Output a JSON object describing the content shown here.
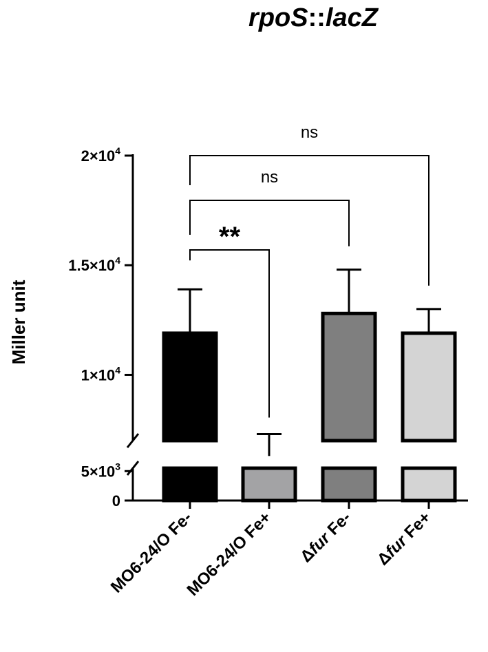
{
  "chart_data": {
    "type": "bar",
    "title": "rpoS::lacZ",
    "ylabel": "Miller unit",
    "xlabel": "",
    "ylim": [
      0,
      20000
    ],
    "axis_break": [
      5500,
      7000
    ],
    "yticks": [
      {
        "value": 0,
        "label": "0"
      },
      {
        "value": 5000,
        "label": "5×10",
        "exp": "3"
      },
      {
        "value": 10000,
        "label": "1×10",
        "exp": "4"
      },
      {
        "value": 15000,
        "label": "1.5×10",
        "exp": "4"
      },
      {
        "value": 20000,
        "label": "2×10",
        "exp": "4"
      }
    ],
    "categories": [
      {
        "prefix": "MO6-24/O",
        "italic": "",
        "suffix": " Fe-"
      },
      {
        "prefix": "MO6-24/O",
        "italic": "",
        "suffix": " Fe+"
      },
      {
        "prefix": "Δ",
        "italic": "fur",
        "suffix": " Fe-"
      },
      {
        "prefix": "Δ",
        "italic": "fur",
        "suffix": " Fe+"
      }
    ],
    "values": [
      11900,
      6300,
      12800,
      11900
    ],
    "errors": [
      2000,
      1000,
      2000,
      1100
    ],
    "colors": [
      "#000000",
      "#a3a3a5",
      "#7f7f7f",
      "#d4d4d4"
    ],
    "significance": [
      {
        "from": 0,
        "to": 1,
        "label": "**"
      },
      {
        "from": 0,
        "to": 2,
        "label": "ns"
      },
      {
        "from": 0,
        "to": 3,
        "label": "ns"
      }
    ]
  }
}
